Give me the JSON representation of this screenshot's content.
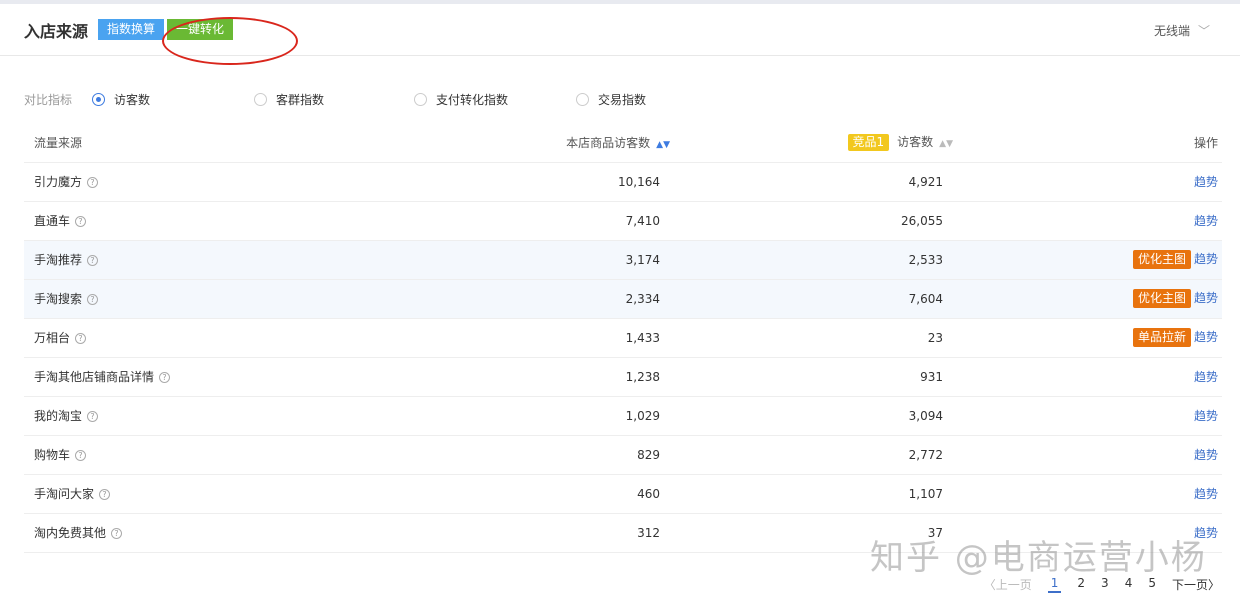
{
  "header": {
    "title": "入店来源",
    "btn_index": "指数换算",
    "btn_convert": "一键转化",
    "device": "无线端"
  },
  "filters": {
    "label": "对比指标",
    "options": [
      {
        "label": "访客数",
        "selected": true
      },
      {
        "label": "客群指数",
        "selected": false
      },
      {
        "label": "支付转化指数",
        "selected": false
      },
      {
        "label": "交易指数",
        "selected": false
      }
    ]
  },
  "table": {
    "headers": {
      "source": "流量来源",
      "own": "本店商品访客数",
      "competitor_tag": "竞品1",
      "competitor": "访客数",
      "action": "操作"
    },
    "rows": [
      {
        "source": "引力魔方",
        "own": "10,164",
        "comp": "4,921",
        "tag": "",
        "link": "趋势"
      },
      {
        "source": "直通车",
        "own": "7,410",
        "comp": "26,055",
        "tag": "",
        "link": "趋势"
      },
      {
        "source": "手淘推荐",
        "own": "3,174",
        "comp": "2,533",
        "tag": "优化主图",
        "link": "趋势"
      },
      {
        "source": "手淘搜索",
        "own": "2,334",
        "comp": "7,604",
        "tag": "优化主图",
        "link": "趋势"
      },
      {
        "source": "万相台",
        "own": "1,433",
        "comp": "23",
        "tag": "单品拉新",
        "link": "趋势"
      },
      {
        "source": "手淘其他店铺商品详情",
        "own": "1,238",
        "comp": "931",
        "tag": "",
        "link": "趋势"
      },
      {
        "source": "我的淘宝",
        "own": "1,029",
        "comp": "3,094",
        "tag": "",
        "link": "趋势"
      },
      {
        "source": "购物车",
        "own": "829",
        "comp": "2,772",
        "tag": "",
        "link": "趋势"
      },
      {
        "source": "手淘问大家",
        "own": "460",
        "comp": "1,107",
        "tag": "",
        "link": "趋势"
      },
      {
        "source": "淘内免费其他",
        "own": "312",
        "comp": "37",
        "tag": "",
        "link": "趋势"
      }
    ]
  },
  "pager": {
    "prev": "上一页",
    "pages": [
      "1",
      "2",
      "3",
      "4",
      "5"
    ],
    "current": "1",
    "next": "下一页"
  },
  "watermark": "知乎 @电商运营小杨",
  "colors": {
    "accent": "#3d6fc9",
    "tag": "#e8730e",
    "competitor": "#f2c81e"
  }
}
